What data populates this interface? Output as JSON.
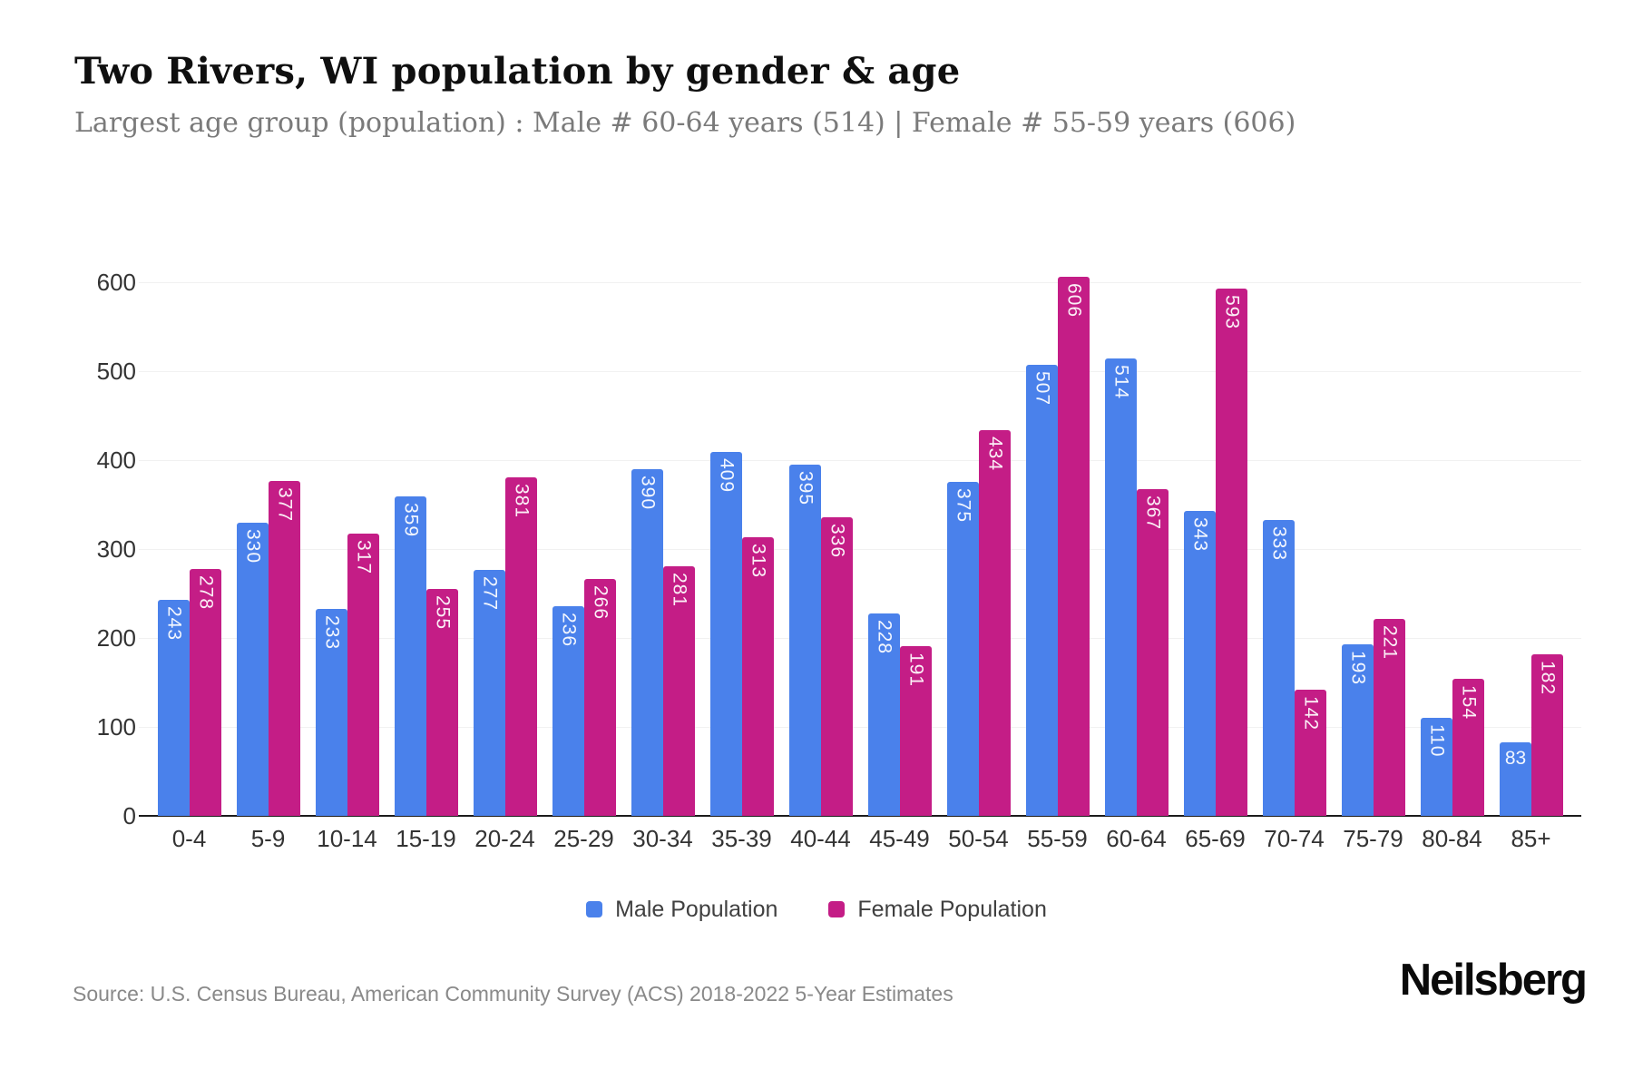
{
  "header": {
    "title": "Two Rivers, WI population by gender & age",
    "subtitle": "Largest age group (population) : Male # 60-64 years (514) | Female # 55-59 years (606)"
  },
  "chart_data": {
    "type": "bar",
    "title": "Two Rivers, WI population by gender & age",
    "xlabel": "",
    "ylabel": "",
    "categories": [
      "0-4",
      "5-9",
      "10-14",
      "15-19",
      "20-24",
      "25-29",
      "30-34",
      "35-39",
      "40-44",
      "45-49",
      "50-54",
      "55-59",
      "60-64",
      "65-69",
      "70-74",
      "75-79",
      "80-84",
      "85+"
    ],
    "series": [
      {
        "name": "Male Population",
        "color": "#4a81eb",
        "values": [
          243,
          330,
          233,
          359,
          277,
          236,
          390,
          409,
          395,
          228,
          375,
          507,
          514,
          343,
          333,
          193,
          110,
          83
        ]
      },
      {
        "name": "Female Population",
        "color": "#c41d86",
        "values": [
          278,
          377,
          317,
          255,
          381,
          266,
          281,
          313,
          336,
          191,
          434,
          606,
          367,
          593,
          142,
          221,
          154,
          182
        ]
      }
    ],
    "ylim": [
      0,
      600
    ],
    "yticks": [
      0,
      100,
      200,
      300,
      400,
      500,
      600
    ],
    "grid": true,
    "legend_position": "bottom",
    "value_labels": "inside bar top, white, rotated 90deg (horizontal when 2 digits)"
  },
  "legend": {
    "items": [
      {
        "label": "Male Population",
        "color": "#4a81eb"
      },
      {
        "label": "Female Population",
        "color": "#c41d86"
      }
    ]
  },
  "footer": {
    "source": "Source: U.S. Census Bureau, American Community Survey (ACS) 2018-2022 5-Year Estimates",
    "brand": "Neilsberg"
  }
}
